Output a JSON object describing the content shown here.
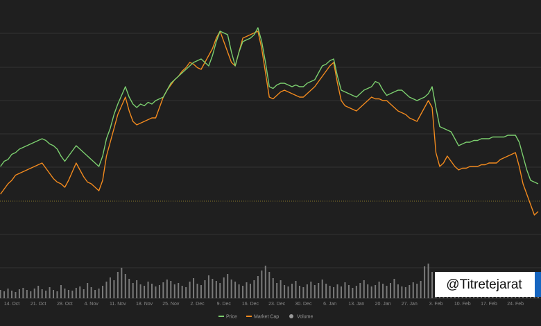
{
  "chart_data": {
    "type": "line",
    "categories": [
      null,
      null,
      null,
      "14. Oct",
      null,
      null,
      null,
      null,
      null,
      null,
      "21. Oct",
      null,
      null,
      null,
      null,
      null,
      null,
      "28. Oct",
      null,
      null,
      null,
      null,
      null,
      null,
      "4. Nov",
      null,
      null,
      null,
      null,
      null,
      null,
      "11. Nov",
      null,
      null,
      null,
      null,
      null,
      null,
      "18. Nov",
      null,
      null,
      null,
      null,
      null,
      null,
      "25. Nov",
      null,
      null,
      null,
      null,
      null,
      null,
      "2. Dec",
      null,
      null,
      null,
      null,
      null,
      null,
      "9. Dec",
      null,
      null,
      null,
      null,
      null,
      null,
      "16. Dec",
      null,
      null,
      null,
      null,
      null,
      null,
      "23. Dec",
      null,
      null,
      null,
      null,
      null,
      null,
      "30. Dec",
      null,
      null,
      null,
      null,
      null,
      null,
      "6. Jan",
      null,
      null,
      null,
      null,
      null,
      null,
      "13. Jan",
      null,
      null,
      null,
      null,
      null,
      null,
      "20. Jan",
      null,
      null,
      null,
      null,
      null,
      null,
      "27. Jan",
      null,
      null,
      null,
      null,
      null,
      null,
      "3. Feb",
      null,
      null,
      null,
      null,
      null,
      null,
      "10. Feb",
      null,
      null,
      null,
      null,
      null,
      null,
      "17. Feb",
      null,
      null,
      null,
      null,
      null,
      null,
      "24. Feb",
      null,
      null,
      null,
      null,
      null,
      null
    ],
    "series": [
      {
        "name": "Price",
        "color": "#7ccf6f",
        "values": [
          38,
          39.5,
          40,
          41.5,
          42,
          43,
          43.5,
          44,
          44.5,
          45,
          45.5,
          46,
          45.5,
          44.5,
          44,
          43,
          41,
          39.5,
          41,
          42.5,
          44,
          43,
          42,
          41,
          40,
          39,
          38,
          41,
          46,
          49,
          53,
          56,
          58.5,
          61,
          58,
          56,
          55,
          56,
          55.5,
          56.5,
          56,
          57,
          57.5,
          58,
          60,
          62,
          63,
          64,
          65,
          66,
          67,
          68,
          68.5,
          69,
          68,
          67,
          70,
          74,
          77,
          76.5,
          76,
          71,
          67,
          71,
          74,
          74.5,
          75,
          76,
          78,
          74,
          68,
          61,
          60.5,
          61.5,
          62,
          62,
          61.5,
          61,
          61.5,
          61,
          61,
          62,
          62.5,
          63,
          65,
          67,
          67.5,
          68.5,
          69,
          64,
          60,
          59.5,
          59,
          58.5,
          58,
          59,
          60,
          60.5,
          61,
          62.5,
          62,
          60,
          58.5,
          59,
          59.5,
          60,
          60,
          59,
          58,
          57.5,
          57,
          57.5,
          58,
          59,
          61,
          55,
          49.5,
          49,
          48.5,
          48,
          46,
          44,
          44.5,
          45,
          45,
          45.5,
          45.5,
          46,
          46,
          46,
          46.5,
          46.5,
          46.5,
          46.5,
          47,
          47,
          47,
          45,
          41,
          37,
          34,
          33.5,
          33
        ]
      },
      {
        "name": "Market Cap",
        "color": "#f28a1e",
        "values": [
          30,
          31.5,
          33,
          34,
          35.5,
          36,
          36.5,
          37,
          37.5,
          38,
          38.5,
          39,
          37.5,
          36,
          34.5,
          33.5,
          33,
          32,
          34,
          36.5,
          39,
          37,
          35,
          33.5,
          33,
          32,
          31,
          34,
          41,
          45,
          49,
          53,
          55.5,
          58,
          54,
          51,
          50,
          50.5,
          51,
          51.5,
          52,
          52,
          55,
          58,
          60,
          61.5,
          63,
          64,
          65.5,
          66.5,
          68,
          67.5,
          66.5,
          66,
          68,
          70,
          72,
          75,
          77,
          74,
          71,
          68,
          67,
          71,
          75,
          75.5,
          76,
          76.5,
          77,
          72,
          65,
          58,
          57.5,
          58.5,
          59.5,
          60,
          59.5,
          59,
          58.5,
          58,
          58,
          59,
          60,
          61,
          62.5,
          64,
          65.5,
          67,
          68,
          62,
          57,
          55.5,
          55,
          54.5,
          54,
          55,
          56,
          57,
          58,
          57.5,
          57.5,
          57,
          57,
          56,
          55,
          54,
          53.5,
          53,
          52,
          51.5,
          51,
          53,
          55,
          57,
          55,
          42,
          38,
          39,
          41,
          39.5,
          38,
          37,
          37.5,
          37.5,
          38,
          38,
          38,
          38.5,
          38.5,
          39,
          39,
          39,
          40,
          40.5,
          41,
          41.5,
          42,
          38,
          33,
          30,
          27,
          24,
          25
        ]
      },
      {
        "name": "Volume",
        "color": "#9a9a9a",
        "axis": "y2",
        "values": [
          12,
          10,
          14,
          11,
          9,
          13,
          15,
          12,
          10,
          14,
          18,
          13,
          11,
          16,
          12,
          10,
          19,
          14,
          12,
          11,
          15,
          17,
          13,
          22,
          16,
          12,
          14,
          18,
          24,
          30,
          26,
          38,
          44,
          35,
          28,
          22,
          26,
          20,
          18,
          24,
          21,
          17,
          19,
          23,
          27,
          25,
          20,
          22,
          18,
          16,
          24,
          29,
          21,
          19,
          26,
          33,
          28,
          25,
          22,
          30,
          35,
          27,
          24,
          20,
          18,
          23,
          21,
          26,
          32,
          40,
          47,
          38,
          29,
          22,
          26,
          19,
          17,
          21,
          25,
          18,
          16,
          20,
          24,
          19,
          22,
          27,
          21,
          18,
          16,
          20,
          17,
          23,
          19,
          15,
          18,
          22,
          26,
          20,
          17,
          19,
          24,
          21,
          18,
          22,
          28,
          20,
          17,
          16,
          19,
          23,
          21,
          25,
          46,
          50,
          38,
          30,
          24,
          20,
          18,
          16,
          19,
          22,
          17,
          15,
          18,
          20,
          16,
          14,
          19,
          17,
          15,
          18,
          21,
          26,
          22,
          19,
          24,
          28,
          30,
          25,
          20,
          18,
          16
        ]
      }
    ],
    "ylim": [
      0,
      86
    ],
    "y2lim": [
      0,
      50
    ],
    "watermark": "@Titretejarat"
  }
}
